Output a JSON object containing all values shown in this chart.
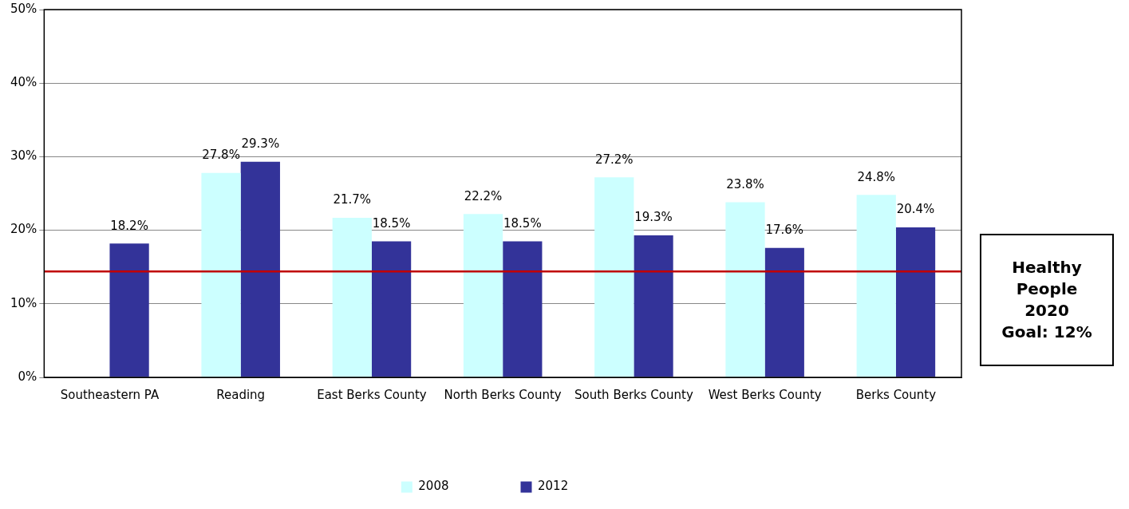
{
  "chart_data": {
    "type": "bar",
    "categories": [
      "Southeastern PA",
      "Reading",
      "East Berks County",
      "North Berks County",
      "South Berks County",
      "West Berks County",
      "Berks County"
    ],
    "series": [
      {
        "name": "2008",
        "color": "#ccffff",
        "values": [
          null,
          27.8,
          21.7,
          22.2,
          27.2,
          23.8,
          24.8
        ],
        "value_labels": [
          null,
          "27.8%",
          "21.7%",
          "22.2%",
          "27.2%",
          "23.8%",
          "24.8%"
        ]
      },
      {
        "name": "2012",
        "color": "#333399",
        "values": [
          18.2,
          29.3,
          18.5,
          18.5,
          19.3,
          17.6,
          20.4
        ],
        "value_labels": [
          "18.2%",
          "29.3%",
          "18.5%",
          "18.5%",
          "19.3%",
          "17.6%",
          "20.4%"
        ]
      }
    ],
    "ylim": [
      0,
      50
    ],
    "yticks": [
      {
        "value": 0,
        "label": "0%"
      },
      {
        "value": 10,
        "label": "10%"
      },
      {
        "value": 20,
        "label": "20%"
      },
      {
        "value": 30,
        "label": "30%"
      },
      {
        "value": 40,
        "label": "40%"
      },
      {
        "value": 50,
        "label": "50%"
      }
    ],
    "ref_lines": [
      {
        "axis": "y",
        "value": 14.4,
        "color": "#c00000"
      }
    ],
    "annotations": [
      "Healthy People 2020 Goal: 12%"
    ],
    "grid": "y",
    "legend": "bottom"
  }
}
